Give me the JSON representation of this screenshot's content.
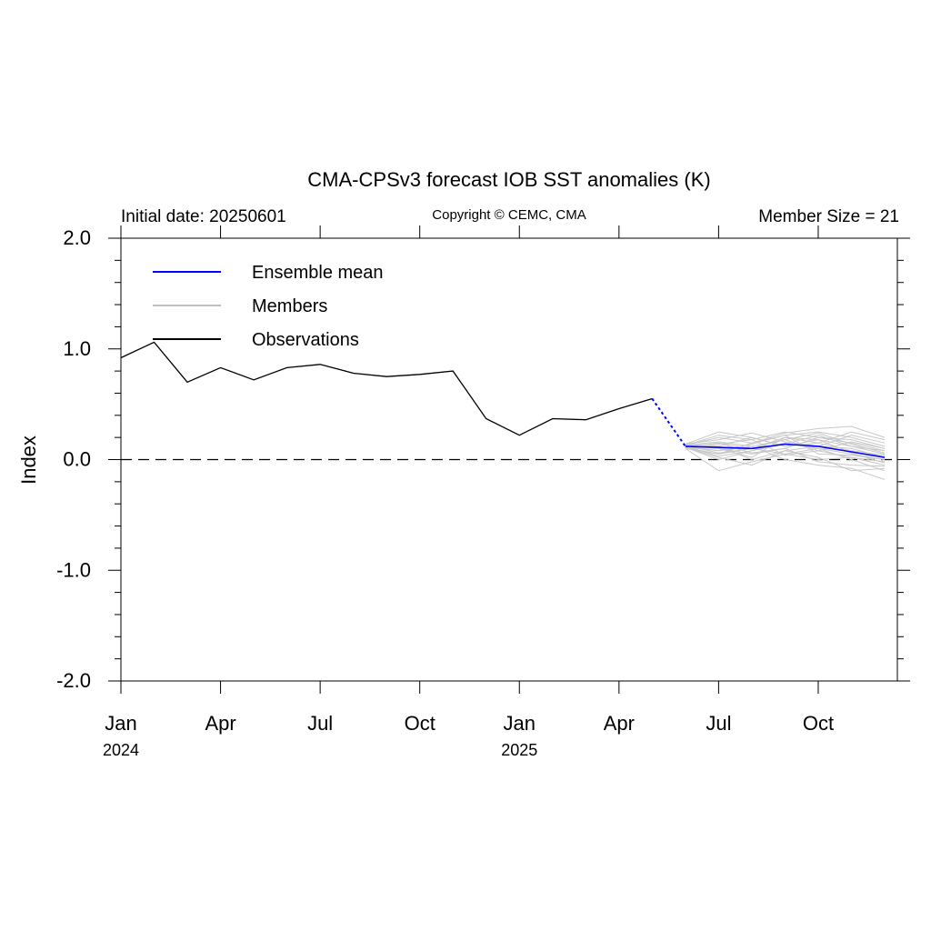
{
  "chart_data": {
    "type": "line",
    "title": "CMA-CPSv3 forecast IOB SST anomalies (K)",
    "header_left": "Initial date: 20250601",
    "header_center": "Copyright © CEMC, CMA",
    "header_right": "Member Size = 21",
    "ylabel": "Index",
    "ylim": [
      -2.0,
      2.0
    ],
    "yticks": [
      "-2.0",
      "-1.0",
      "0.0",
      "1.0",
      "2.0"
    ],
    "ytick_values": [
      -2.0,
      -1.0,
      0.0,
      1.0,
      2.0
    ],
    "xlim": [
      "2024-01",
      "2025-12"
    ],
    "xticks": [
      {
        "label": "Jan",
        "sub": "2024",
        "month": "2024-01"
      },
      {
        "label": "Apr",
        "sub": "",
        "month": "2024-04"
      },
      {
        "label": "Jul",
        "sub": "",
        "month": "2024-07"
      },
      {
        "label": "Oct",
        "sub": "",
        "month": "2024-10"
      },
      {
        "label": "Jan",
        "sub": "2025",
        "month": "2025-01"
      },
      {
        "label": "Apr",
        "sub": "",
        "month": "2025-04"
      },
      {
        "label": "Jul",
        "sub": "",
        "month": "2025-07"
      },
      {
        "label": "Oct",
        "sub": "",
        "month": "2025-10"
      }
    ],
    "zero_line": "dashed",
    "legend_position": "top-left",
    "legend": [
      {
        "name": "Ensemble mean",
        "color": "#0000ff"
      },
      {
        "name": "Members",
        "color": "#bdbdbd"
      },
      {
        "name": "Observations",
        "color": "#000000"
      }
    ],
    "observations": {
      "x": [
        "2024-01",
        "2024-02",
        "2024-03",
        "2024-04",
        "2024-05",
        "2024-06",
        "2024-07",
        "2024-08",
        "2024-09",
        "2024-10",
        "2024-11",
        "2024-12",
        "2025-01",
        "2025-02",
        "2025-03",
        "2025-04",
        "2025-05"
      ],
      "y": [
        0.92,
        1.06,
        0.7,
        0.83,
        0.72,
        0.83,
        0.86,
        0.78,
        0.75,
        0.77,
        0.8,
        0.37,
        0.22,
        0.37,
        0.36,
        0.46,
        0.55
      ]
    },
    "connector": {
      "x": [
        "2025-05",
        "2025-06"
      ],
      "y": [
        0.55,
        0.12
      ],
      "style": "dotted",
      "color": "#0000ff"
    },
    "ensemble_mean": {
      "x": [
        "2025-06",
        "2025-07",
        "2025-08",
        "2025-09",
        "2025-10",
        "2025-11",
        "2025-12"
      ],
      "y": [
        0.12,
        0.11,
        0.1,
        0.14,
        0.12,
        0.07,
        0.02
      ]
    },
    "members": {
      "x": [
        "2025-06",
        "2025-07",
        "2025-08",
        "2025-09",
        "2025-10",
        "2025-11",
        "2025-12"
      ],
      "values": [
        [
          0.13,
          0.2,
          0.15,
          0.22,
          0.25,
          0.2,
          0.12
        ],
        [
          0.11,
          0.05,
          0.1,
          0.18,
          0.08,
          0.02,
          -0.05
        ],
        [
          0.12,
          0.15,
          0.06,
          0.1,
          0.2,
          0.15,
          0.08
        ],
        [
          0.1,
          -0.1,
          -0.02,
          0.05,
          0.1,
          0.05,
          0.0
        ],
        [
          0.14,
          0.18,
          0.24,
          0.16,
          0.12,
          0.22,
          0.15
        ],
        [
          0.12,
          0.08,
          0.12,
          0.0,
          -0.05,
          -0.08,
          -0.18
        ],
        [
          0.13,
          0.22,
          0.18,
          0.25,
          0.2,
          0.18,
          0.1
        ],
        [
          0.11,
          0.02,
          -0.05,
          0.08,
          0.02,
          -0.1,
          -0.08
        ],
        [
          0.12,
          0.12,
          0.2,
          0.12,
          0.18,
          0.12,
          0.05
        ],
        [
          0.13,
          0.1,
          0.02,
          0.2,
          0.15,
          0.08,
          0.04
        ],
        [
          0.1,
          0.05,
          0.15,
          0.24,
          0.28,
          0.3,
          0.2
        ],
        [
          0.12,
          0.15,
          0.1,
          0.05,
          0.0,
          0.02,
          -0.02
        ],
        [
          0.11,
          0.0,
          0.08,
          0.15,
          0.1,
          0.0,
          -0.1
        ],
        [
          0.13,
          0.16,
          0.12,
          0.18,
          0.24,
          0.14,
          0.06
        ],
        [
          0.12,
          0.1,
          0.05,
          0.1,
          -0.02,
          -0.05,
          -0.06
        ],
        [
          0.14,
          0.25,
          0.2,
          0.12,
          0.15,
          0.25,
          0.18
        ],
        [
          0.11,
          0.08,
          0.14,
          0.22,
          0.05,
          0.04,
          0.0
        ],
        [
          0.12,
          0.12,
          0.0,
          0.08,
          0.12,
          0.1,
          0.02
        ],
        [
          0.13,
          0.06,
          0.1,
          0.2,
          0.18,
          0.06,
          -0.03
        ],
        [
          0.1,
          0.14,
          0.18,
          0.04,
          0.08,
          0.16,
          0.1
        ],
        [
          0.12,
          0.03,
          0.08,
          0.14,
          0.22,
          0.12,
          0.08
        ]
      ]
    }
  }
}
